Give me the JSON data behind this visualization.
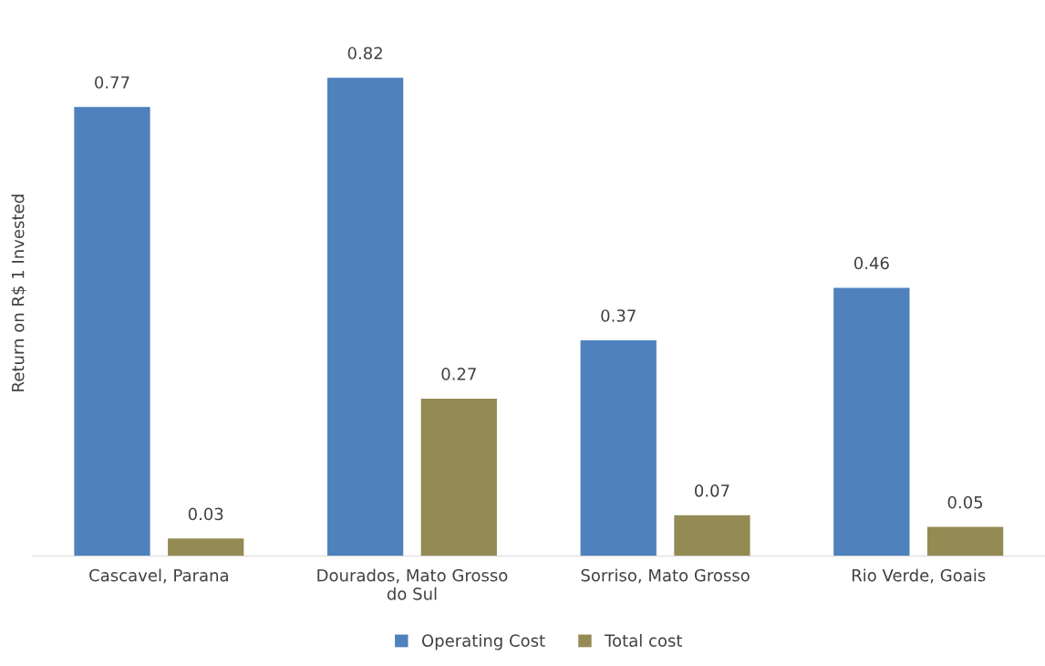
{
  "chart_data": {
    "type": "bar",
    "ylabel": "Return on R$ 1 Invested",
    "categories": [
      "Cascavel, Parana",
      "Dourados, Mato Grosso\ndo Sul",
      "Sorriso, Mato Grosso",
      "Rio Verde, Goais"
    ],
    "series": [
      {
        "name": "Operating Cost",
        "color": "#4f81bd",
        "values": [
          0.77,
          0.82,
          0.37,
          0.46
        ]
      },
      {
        "name": "Total cost",
        "color": "#948a54",
        "values": [
          0.03,
          0.27,
          0.07,
          0.05
        ]
      }
    ],
    "data_labels": true,
    "grid": false,
    "legend": "bottom",
    "tick_labels": "x"
  }
}
